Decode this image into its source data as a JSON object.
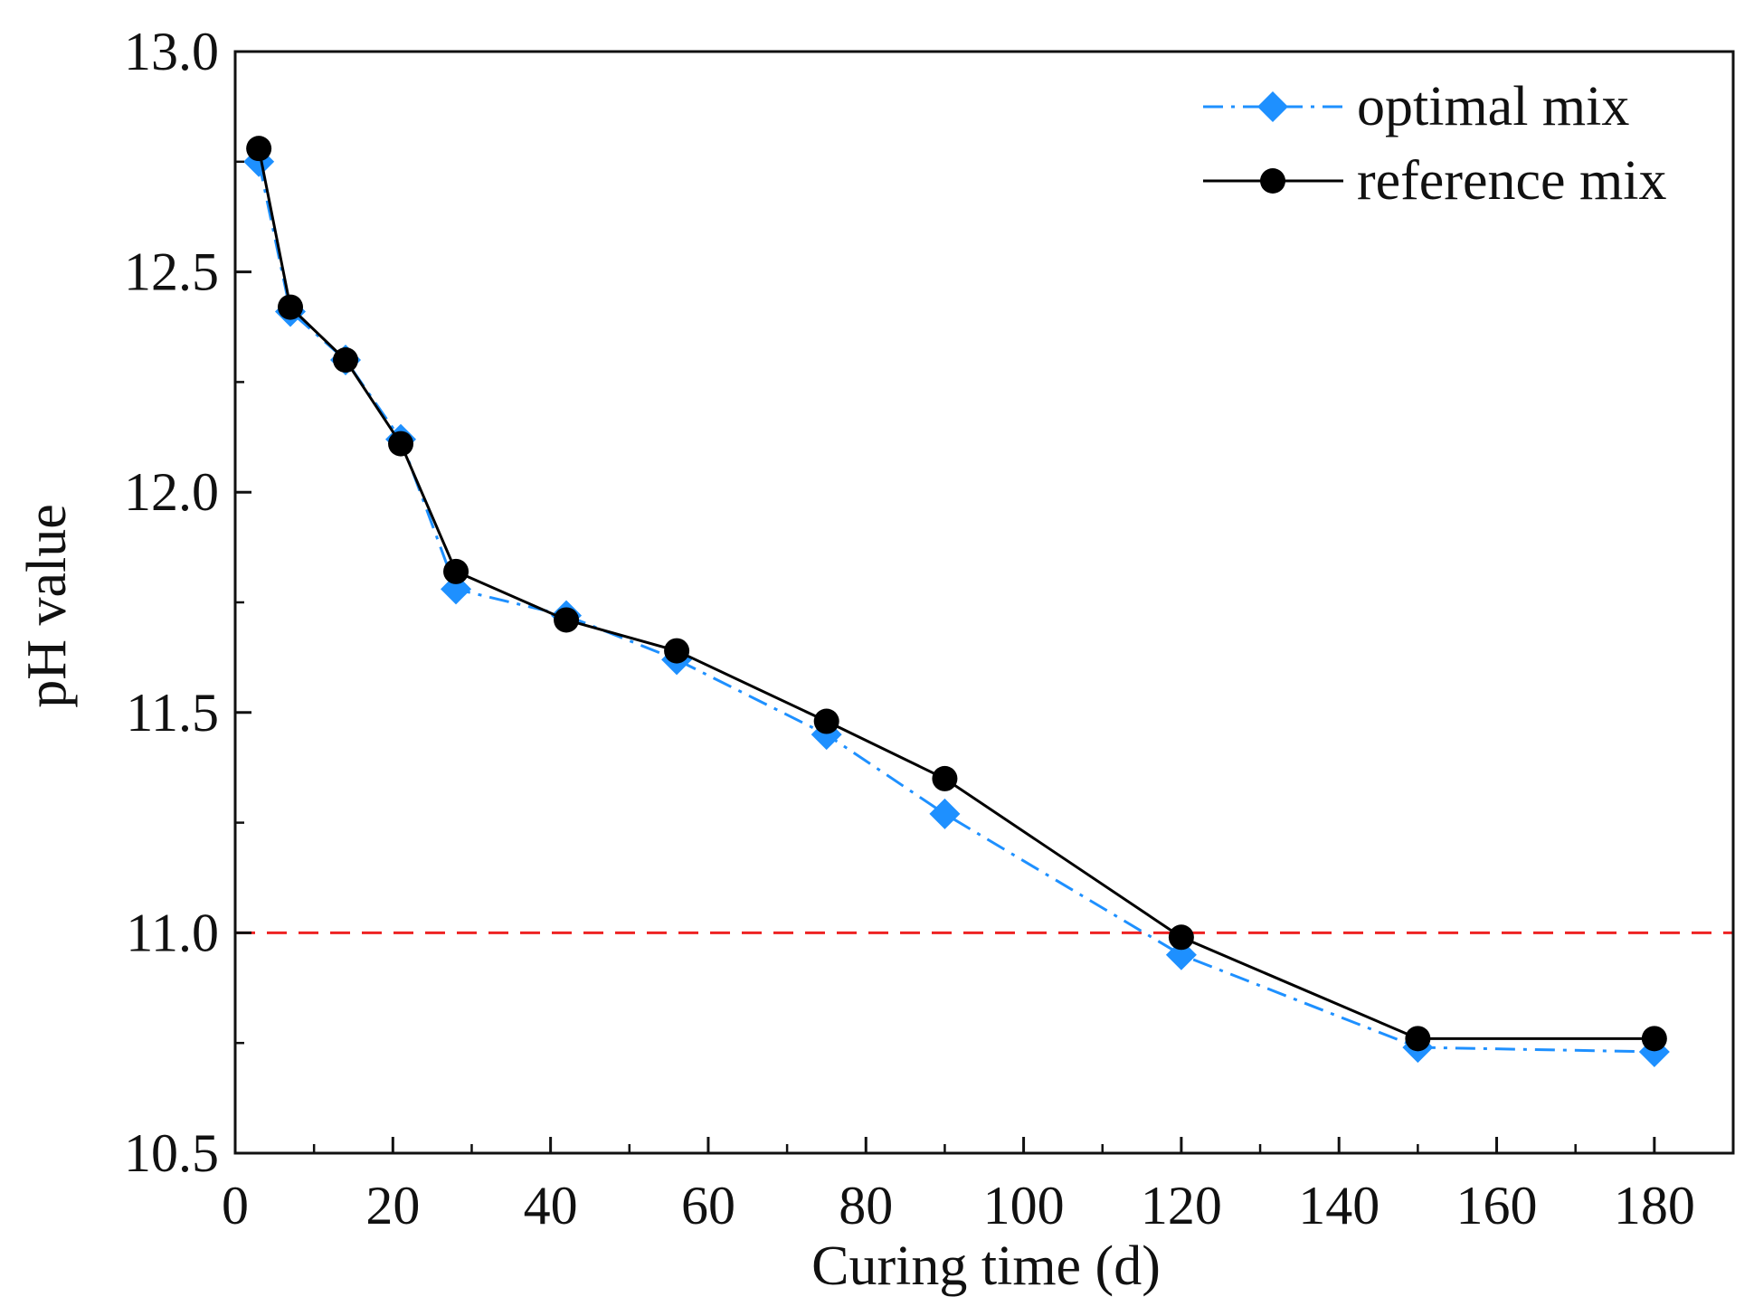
{
  "chart_data": {
    "type": "line",
    "title": "",
    "xlabel": "Curing time (d)",
    "ylabel": "pH value",
    "xlim": [
      0,
      190
    ],
    "ylim": [
      10.5,
      13.0
    ],
    "x_ticks": [
      0,
      20,
      40,
      60,
      80,
      100,
      120,
      140,
      160,
      180
    ],
    "x_tick_labels": [
      "0",
      "20",
      "40",
      "60",
      "80",
      "100",
      "120",
      "140",
      "160",
      "180"
    ],
    "y_ticks": [
      10.5,
      11.0,
      11.5,
      12.0,
      12.5,
      13.0
    ],
    "y_tick_labels": [
      "10.5",
      "11.0",
      "11.5",
      "12.0",
      "12.5",
      "13.0"
    ],
    "grid": false,
    "legend_position": "top-right",
    "reference_line": {
      "y": 11.0,
      "color": "#ee2222",
      "style": "dashed"
    },
    "series": [
      {
        "name": "optimal mix",
        "color": "#1e90ff",
        "line_style": "dash-dot",
        "marker": "diamond",
        "x": [
          3,
          7,
          14,
          21,
          28,
          42,
          56,
          75,
          90,
          120,
          150,
          180
        ],
        "y": [
          12.75,
          12.41,
          12.3,
          12.12,
          11.78,
          11.72,
          11.62,
          11.45,
          11.27,
          10.95,
          10.74,
          10.73
        ]
      },
      {
        "name": "reference mix",
        "color": "#000000",
        "line_style": "solid",
        "marker": "circle",
        "x": [
          3,
          7,
          14,
          21,
          28,
          42,
          56,
          75,
          90,
          120,
          150,
          180
        ],
        "y": [
          12.78,
          12.42,
          12.3,
          12.11,
          11.82,
          11.71,
          11.64,
          11.48,
          11.35,
          10.99,
          10.76,
          10.76
        ]
      }
    ]
  }
}
